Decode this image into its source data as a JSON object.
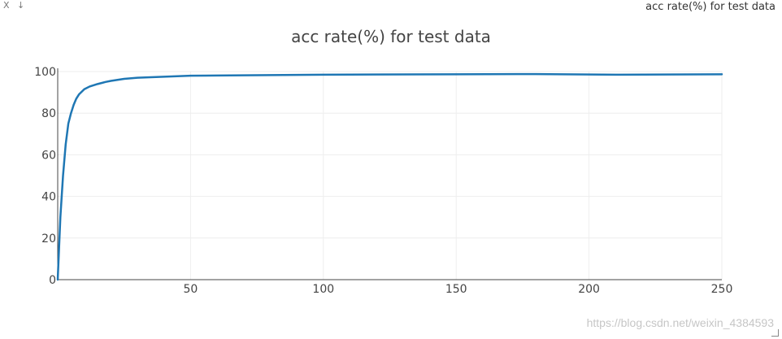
{
  "window": {
    "title": "acc rate(%) for test data",
    "close_glyph": "X",
    "download_glyph": "↓"
  },
  "watermark": "https://blog.csdn.net/weixin_4384593",
  "colors": {
    "line": "#1f77b4",
    "grid": "#eeeeee",
    "axis": "#444444",
    "text": "#444444"
  },
  "chart_data": {
    "type": "line",
    "title": "acc rate(%) for test data",
    "xlabel": "",
    "ylabel": "",
    "xlim": [
      0,
      250
    ],
    "ylim": [
      0,
      100
    ],
    "x_ticks": [
      50,
      100,
      150,
      200,
      250
    ],
    "y_ticks": [
      0,
      20,
      40,
      60,
      80,
      100
    ],
    "grid": true,
    "legend": "none",
    "series": [
      {
        "x": [
          1,
          2,
          3,
          4,
          5,
          6,
          7,
          8,
          10,
          12,
          15,
          18,
          20,
          25,
          30,
          40,
          50,
          60,
          80,
          100,
          120,
          150,
          180,
          200,
          210,
          230,
          250
        ],
        "y": [
          30,
          50,
          65,
          75,
          80,
          84,
          87,
          89,
          91.5,
          92.8,
          94,
          95,
          95.5,
          96.5,
          97,
          97.5,
          98,
          98.1,
          98.3,
          98.5,
          98.6,
          98.7,
          98.8,
          98.6,
          98.5,
          98.6,
          98.7
        ]
      }
    ]
  }
}
